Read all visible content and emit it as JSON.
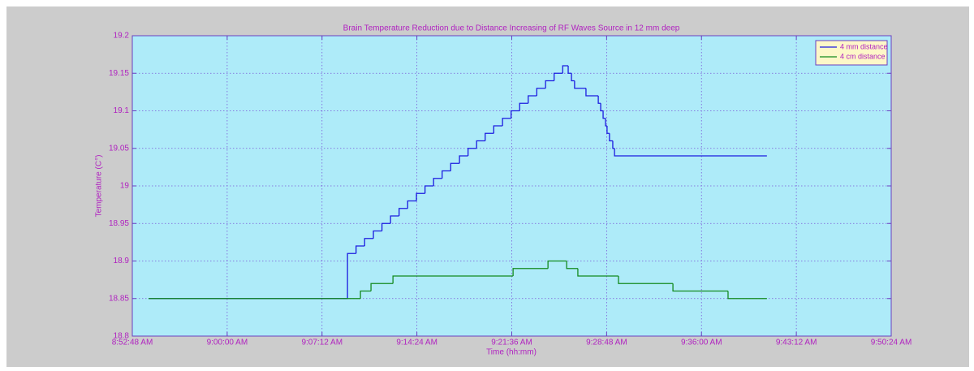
{
  "chart_data": {
    "type": "line",
    "drawstyle": "steps-post",
    "title": "Brain Temperature Reduction due to Distance Increasing of RF Waves Source in 12 mm deep",
    "xlabel": "Time (hh:mm)",
    "ylabel": "Temperature (C°)",
    "xlim": [
      31968,
      35424
    ],
    "xticks": [
      {
        "value": 31968,
        "label": "8:52:48 AM"
      },
      {
        "value": 32400,
        "label": "9:00:00 AM"
      },
      {
        "value": 32832,
        "label": "9:07:12 AM"
      },
      {
        "value": 33264,
        "label": "9:14:24 AM"
      },
      {
        "value": 33696,
        "label": "9:21:36 AM"
      },
      {
        "value": 34128,
        "label": "9:28:48 AM"
      },
      {
        "value": 34560,
        "label": "9:36:00 AM"
      },
      {
        "value": 34992,
        "label": "9:43:12 AM"
      },
      {
        "value": 35424,
        "label": "9:50:24 AM"
      }
    ],
    "ylim": [
      18.8,
      19.2
    ],
    "yticks": [
      18.8,
      18.85,
      18.9,
      18.95,
      19,
      19.05,
      19.1,
      19.15,
      19.2
    ],
    "grid": true,
    "legend": "upper right",
    "series": [
      {
        "name": "4 mm distance",
        "color": "#1c1ce0",
        "x": [
          32042,
          32925,
          32948,
          32987,
          33026,
          33066,
          33105,
          33144,
          33183,
          33222,
          33262,
          33301,
          33340,
          33379,
          33418,
          33458,
          33497,
          33536,
          33575,
          33614,
          33654,
          33693,
          33732,
          33771,
          33810,
          33850,
          33889,
          33928,
          33953,
          33968,
          33982,
          34034,
          34090,
          34101,
          34112,
          34123,
          34130,
          34141,
          34156,
          34164,
          34858
        ],
        "values": [
          18.85,
          18.85,
          18.91,
          18.92,
          18.93,
          18.94,
          18.95,
          18.96,
          18.97,
          18.98,
          18.99,
          19.0,
          19.01,
          19.02,
          19.03,
          19.04,
          19.05,
          19.06,
          19.07,
          19.08,
          19.09,
          19.1,
          19.11,
          19.12,
          19.13,
          19.14,
          19.15,
          19.16,
          19.15,
          19.14,
          19.13,
          19.12,
          19.11,
          19.1,
          19.09,
          19.08,
          19.07,
          19.06,
          19.05,
          19.04,
          19.04
        ]
      },
      {
        "name": "4 cm distance",
        "color": "#138a1e",
        "x": [
          32042,
          33007,
          33055,
          33155,
          33702,
          33861,
          33946,
          33997,
          34182,
          34430,
          34681,
          34858
        ],
        "values": [
          18.85,
          18.86,
          18.87,
          18.88,
          18.89,
          18.9,
          18.89,
          18.88,
          18.87,
          18.86,
          18.85,
          18.85
        ]
      }
    ]
  }
}
